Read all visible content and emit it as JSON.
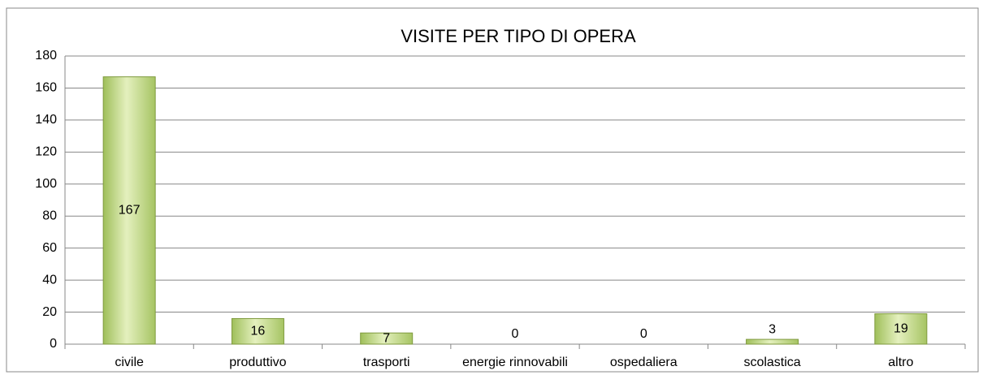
{
  "chart_data": {
    "type": "bar",
    "title": "VISITE PER TIPO DI OPERA",
    "categories": [
      "civile",
      "produttivo",
      "trasporti",
      "energie rinnovabili",
      "ospedaliera",
      "scolastica",
      "altro"
    ],
    "values": [
      167,
      16,
      7,
      0,
      0,
      3,
      19
    ],
    "color": "#c4d98a",
    "ylim": [
      0,
      180
    ],
    "yticks": [
      0,
      20,
      40,
      60,
      80,
      100,
      120,
      140,
      160,
      180
    ],
    "grid": true
  }
}
